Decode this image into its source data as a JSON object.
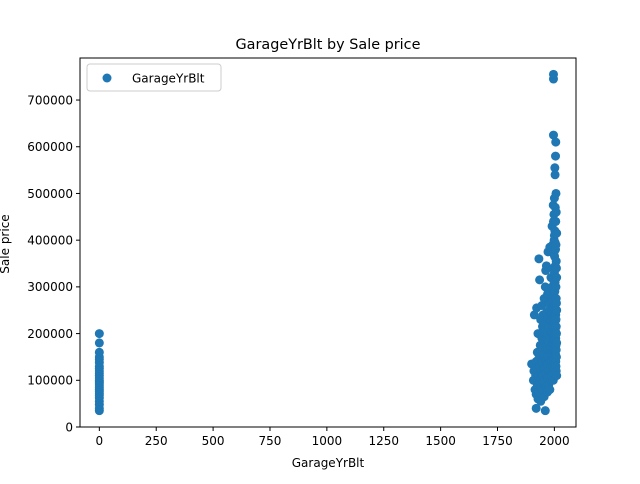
{
  "chart_data": {
    "type": "scatter",
    "title": "GarageYrBlt by Sale price",
    "xlabel": "GarageYrBlt",
    "ylabel": "Sale price",
    "xlim": [
      -85,
      2095
    ],
    "ylim": [
      0,
      790000
    ],
    "xticks": [
      0,
      250,
      500,
      750,
      1000,
      1250,
      1500,
      1750,
      2000
    ],
    "yticks": [
      0,
      100000,
      200000,
      300000,
      400000,
      500000,
      600000,
      700000
    ],
    "grid": false,
    "legend": {
      "position": "top-left",
      "entries": [
        "GarageYrBlt"
      ]
    },
    "series": [
      {
        "name": "GarageYrBlt",
        "color": "#1f77b4",
        "points": [
          [
            0,
            35000
          ],
          [
            0,
            40000
          ],
          [
            0,
            48000
          ],
          [
            0,
            55000
          ],
          [
            0,
            62000
          ],
          [
            0,
            68000
          ],
          [
            0,
            72000
          ],
          [
            0,
            76000
          ],
          [
            0,
            80000
          ],
          [
            0,
            84000
          ],
          [
            0,
            88000
          ],
          [
            0,
            92000
          ],
          [
            0,
            96000
          ],
          [
            0,
            100000
          ],
          [
            0,
            105000
          ],
          [
            0,
            110000
          ],
          [
            0,
            115000
          ],
          [
            0,
            120000
          ],
          [
            0,
            125000
          ],
          [
            0,
            130000
          ],
          [
            0,
            138000
          ],
          [
            0,
            145000
          ],
          [
            0,
            150000
          ],
          [
            0,
            160000
          ],
          [
            0,
            180000
          ],
          [
            0,
            200000
          ],
          [
            1900,
            135000
          ],
          [
            1908,
            100000
          ],
          [
            1910,
            120000
          ],
          [
            1912,
            240000
          ],
          [
            1915,
            80000
          ],
          [
            1918,
            110000
          ],
          [
            1920,
            40000
          ],
          [
            1920,
            70000
          ],
          [
            1920,
            140000
          ],
          [
            1922,
            255000
          ],
          [
            1925,
            90000
          ],
          [
            1925,
            125000
          ],
          [
            1925,
            160000
          ],
          [
            1928,
            60000
          ],
          [
            1928,
            200000
          ],
          [
            1930,
            75000
          ],
          [
            1930,
            110000
          ],
          [
            1930,
            145000
          ],
          [
            1932,
            360000
          ],
          [
            1935,
            130000
          ],
          [
            1935,
            315000
          ],
          [
            1938,
            95000
          ],
          [
            1938,
            175000
          ],
          [
            1940,
            55000
          ],
          [
            1940,
            85000
          ],
          [
            1940,
            120000
          ],
          [
            1940,
            165000
          ],
          [
            1940,
            230000
          ],
          [
            1942,
            105000
          ],
          [
            1945,
            70000
          ],
          [
            1945,
            140000
          ],
          [
            1945,
            190000
          ],
          [
            1945,
            260000
          ],
          [
            1948,
            115000
          ],
          [
            1948,
            215000
          ],
          [
            1950,
            80000
          ],
          [
            1950,
            110000
          ],
          [
            1950,
            140000
          ],
          [
            1950,
            170000
          ],
          [
            1950,
            205000
          ],
          [
            1950,
            240000
          ],
          [
            1952,
            95000
          ],
          [
            1952,
            155000
          ],
          [
            1955,
            65000
          ],
          [
            1955,
            100000
          ],
          [
            1955,
            130000
          ],
          [
            1955,
            185000
          ],
          [
            1955,
            275000
          ],
          [
            1958,
            120000
          ],
          [
            1958,
            220000
          ],
          [
            1960,
            35000
          ],
          [
            1960,
            90000
          ],
          [
            1960,
            125000
          ],
          [
            1960,
            150000
          ],
          [
            1960,
            180000
          ],
          [
            1960,
            210000
          ],
          [
            1960,
            300000
          ],
          [
            1962,
            140000
          ],
          [
            1962,
            335000
          ],
          [
            1965,
            85000
          ],
          [
            1965,
            115000
          ],
          [
            1965,
            145000
          ],
          [
            1965,
            175000
          ],
          [
            1965,
            245000
          ],
          [
            1965,
            345000
          ],
          [
            1968,
            130000
          ],
          [
            1968,
            190000
          ],
          [
            1970,
            75000
          ],
          [
            1970,
            105000
          ],
          [
            1970,
            135000
          ],
          [
            1970,
            165000
          ],
          [
            1970,
            200000
          ],
          [
            1970,
            235000
          ],
          [
            1970,
            285000
          ],
          [
            1972,
            155000
          ],
          [
            1972,
            375000
          ],
          [
            1975,
            90000
          ],
          [
            1975,
            120000
          ],
          [
            1975,
            150000
          ],
          [
            1975,
            180000
          ],
          [
            1975,
            215000
          ],
          [
            1975,
            265000
          ],
          [
            1978,
            140000
          ],
          [
            1978,
            250000
          ],
          [
            1980,
            80000
          ],
          [
            1980,
            110000
          ],
          [
            1980,
            140000
          ],
          [
            1980,
            170000
          ],
          [
            1980,
            200000
          ],
          [
            1980,
            230000
          ],
          [
            1980,
            290000
          ],
          [
            1980,
            385000
          ],
          [
            1982,
            160000
          ],
          [
            1985,
            100000
          ],
          [
            1985,
            130000
          ],
          [
            1985,
            165000
          ],
          [
            1985,
            195000
          ],
          [
            1985,
            225000
          ],
          [
            1985,
            270000
          ],
          [
            1985,
            320000
          ],
          [
            1988,
            145000
          ],
          [
            1988,
            240000
          ],
          [
            1990,
            110000
          ],
          [
            1990,
            140000
          ],
          [
            1990,
            170000
          ],
          [
            1990,
            200000
          ],
          [
            1990,
            245000
          ],
          [
            1990,
            300000
          ],
          [
            1990,
            430000
          ],
          [
            1992,
            180000
          ],
          [
            1992,
            270000
          ],
          [
            1993,
            390000
          ],
          [
            1994,
            130000
          ],
          [
            1994,
            220000
          ],
          [
            1995,
            100000
          ],
          [
            1995,
            160000
          ],
          [
            1995,
            195000
          ],
          [
            1995,
            255000
          ],
          [
            1995,
            340000
          ],
          [
            1995,
            475000
          ],
          [
            1996,
            745000
          ],
          [
            1996,
            755000
          ],
          [
            1996,
            625000
          ],
          [
            1996,
            440000
          ],
          [
            1997,
            150000
          ],
          [
            1997,
            230000
          ],
          [
            1998,
            125000
          ],
          [
            1998,
            185000
          ],
          [
            1998,
            280000
          ],
          [
            1998,
            370000
          ],
          [
            1998,
            455000
          ],
          [
            1999,
            210000
          ],
          [
            1999,
            310000
          ],
          [
            1999,
            400000
          ],
          [
            2000,
            115000
          ],
          [
            2000,
            145000
          ],
          [
            2000,
            175000
          ],
          [
            2000,
            215000
          ],
          [
            2000,
            260000
          ],
          [
            2000,
            330000
          ],
          [
            2000,
            410000
          ],
          [
            2000,
            490000
          ],
          [
            2001,
            160000
          ],
          [
            2001,
            240000
          ],
          [
            2001,
            365000
          ],
          [
            2002,
            135000
          ],
          [
            2002,
            195000
          ],
          [
            2002,
            290000
          ],
          [
            2002,
            420000
          ],
          [
            2002,
            555000
          ],
          [
            2003,
            170000
          ],
          [
            2003,
            225000
          ],
          [
            2003,
            310000
          ],
          [
            2003,
            395000
          ],
          [
            2003,
            540000
          ],
          [
            2004,
            125000
          ],
          [
            2004,
            185000
          ],
          [
            2004,
            250000
          ],
          [
            2004,
            345000
          ],
          [
            2004,
            470000
          ],
          [
            2005,
            155000
          ],
          [
            2005,
            205000
          ],
          [
            2005,
            275000
          ],
          [
            2005,
            380000
          ],
          [
            2005,
            580000
          ],
          [
            2006,
            140000
          ],
          [
            2006,
            190000
          ],
          [
            2006,
            240000
          ],
          [
            2006,
            320000
          ],
          [
            2006,
            440000
          ],
          [
            2006,
            610000
          ],
          [
            2007,
            130000
          ],
          [
            2007,
            175000
          ],
          [
            2007,
            230000
          ],
          [
            2007,
            300000
          ],
          [
            2007,
            390000
          ],
          [
            2007,
            500000
          ],
          [
            2008,
            120000
          ],
          [
            2008,
            165000
          ],
          [
            2008,
            215000
          ],
          [
            2008,
            275000
          ],
          [
            2008,
            355000
          ],
          [
            2008,
            460000
          ],
          [
            2009,
            150000
          ],
          [
            2009,
            200000
          ],
          [
            2009,
            265000
          ],
          [
            2009,
            340000
          ],
          [
            2010,
            110000
          ],
          [
            2010,
            180000
          ],
          [
            2010,
            250000
          ],
          [
            2010,
            320000
          ],
          [
            2010,
            415000
          ]
        ]
      }
    ]
  }
}
